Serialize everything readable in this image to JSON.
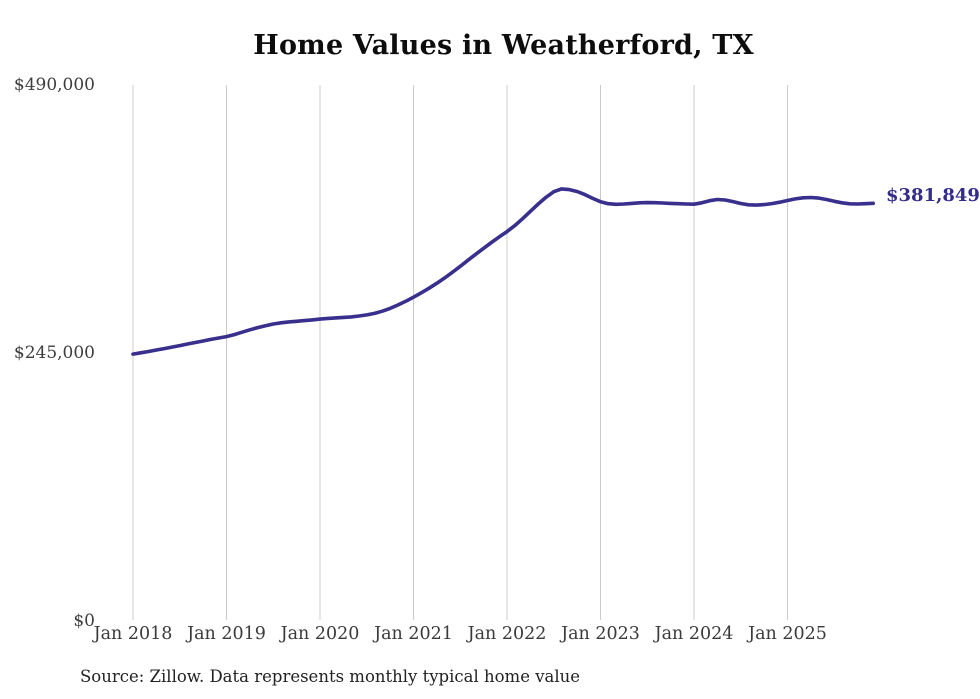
{
  "chart": {
    "title": "Home Values in Weatherford, TX",
    "source_note": "Source: Zillow. Data represents monthly typical home value",
    "end_label": "$381,849",
    "y_ticks": [
      "$0",
      "$245,000",
      "$490,000"
    ],
    "colors": {
      "line": "#38308c",
      "end_label": "#332c8a",
      "gridline": "#cccccc",
      "axis_text": "#3a3a3a",
      "title_text": "#0d0d0d",
      "background": "#ffffff"
    }
  },
  "chart_data": {
    "type": "line",
    "title": "Home Values in Weatherford, TX",
    "xlabel": "",
    "ylabel": "",
    "x_tick_labels": [
      "Jan 2018",
      "Jan 2019",
      "Jan 2020",
      "Jan 2021",
      "Jan 2022",
      "Jan 2023",
      "Jan 2024",
      "Jan 2025"
    ],
    "y_tick_labels": [
      "$0",
      "$245,000",
      "$490,000"
    ],
    "y_tick_values": [
      0,
      245000,
      490000
    ],
    "ylim": [
      0,
      490000
    ],
    "grid": "vertical-yearly",
    "legend": "none",
    "frequency": "monthly",
    "x_start": "Jan 2018",
    "x_end": "Dec 2025",
    "latest_value": 381849,
    "latest_value_label": "$381,849",
    "values": [
      244000,
      245200,
      246400,
      247700,
      249000,
      250400,
      251800,
      253200,
      254600,
      256000,
      257400,
      258700,
      260000,
      261800,
      264000,
      266200,
      268200,
      270000,
      271500,
      272600,
      273400,
      274000,
      274600,
      275300,
      276000,
      276600,
      277100,
      277500,
      278000,
      278800,
      279800,
      281200,
      283200,
      285800,
      288900,
      292300,
      296000,
      300000,
      304200,
      308800,
      313700,
      318900,
      324300,
      329800,
      335300,
      340700,
      346000,
      351100,
      356000,
      361500,
      367800,
      374500,
      381200,
      387300,
      392500,
      395000,
      394400,
      392600,
      389800,
      386300,
      383300,
      381500,
      380900,
      381200,
      381800,
      382300,
      382500,
      382400,
      382100,
      381800,
      381500,
      381200,
      381000,
      382300,
      384200,
      385300,
      384900,
      383400,
      381700,
      380500,
      380200,
      380700,
      381600,
      382900,
      384400,
      385900,
      386900,
      387200,
      386600,
      385300,
      383700,
      382300,
      381400,
      381200,
      381500,
      381849
    ]
  }
}
